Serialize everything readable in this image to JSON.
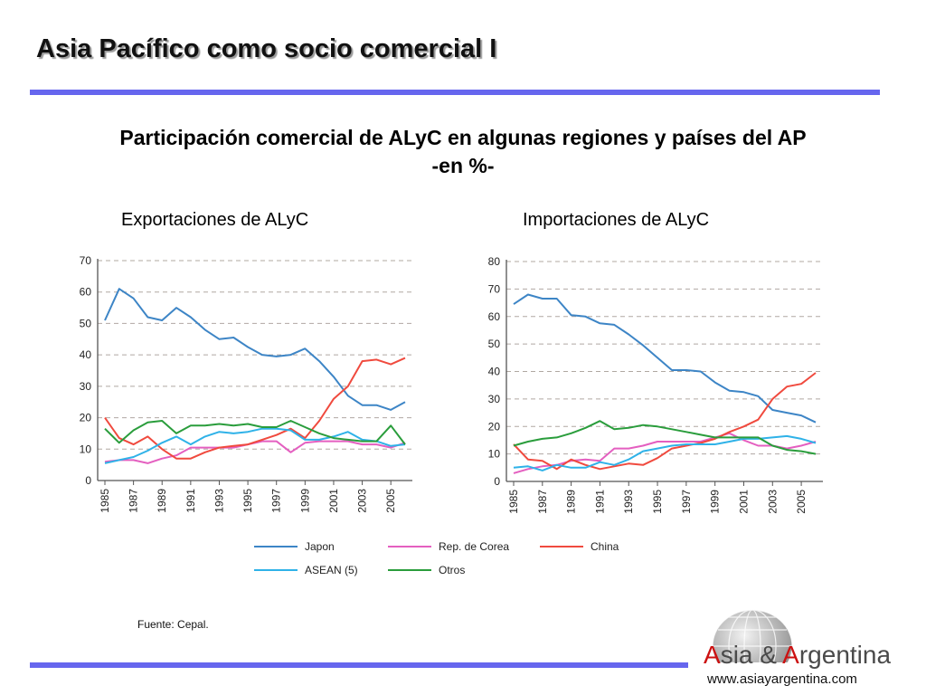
{
  "slide": {
    "title": "Asia Pacífico como socio comercial I",
    "subtitle_line1": "Participación comercial de ALyC en algunas regiones y países del AP",
    "subtitle_line2": "-en %-",
    "source": "Fuente: Cepal.",
    "logo": {
      "cap1": "A",
      "word1": "sia & ",
      "cap2": "A",
      "word2": "rgentina",
      "url": "www.asiayargentina.com"
    }
  },
  "colors": {
    "accent_bar": "#6666ee",
    "Japon": "#3d85c6",
    "Rep. de Corea": "#e45fc0",
    "China": "#f04a3e",
    "ASEAN (5)": "#2fb2e8",
    "Otros": "#2a9d3c"
  },
  "legend": [
    "Japon",
    "Rep. de Corea",
    "China",
    "ASEAN (5)",
    "Otros"
  ],
  "chart_data": [
    {
      "type": "line",
      "title": "Exportaciones de ALyC",
      "xlabel": "",
      "ylabel": "",
      "ylim": [
        0,
        70
      ],
      "yticks": [
        0,
        10,
        20,
        30,
        40,
        50,
        60,
        70
      ],
      "grid": "horizontal-dashed",
      "x": [
        1985,
        1986,
        1987,
        1988,
        1989,
        1990,
        1991,
        1992,
        1993,
        1994,
        1995,
        1996,
        1997,
        1998,
        1999,
        2000,
        2001,
        2002,
        2003,
        2004,
        2005,
        2006
      ],
      "xtick_labels": [
        "1985",
        "1987",
        "1989",
        "1991",
        "1993",
        "1995",
        "1997",
        "1999",
        "2001",
        "2003",
        "2005"
      ],
      "series": [
        {
          "name": "Japon",
          "values": [
            51,
            61,
            58,
            52,
            51,
            55,
            52,
            48,
            45,
            45.5,
            42.5,
            40,
            39.5,
            40,
            42,
            38,
            33,
            27,
            24,
            24,
            22.5,
            25
          ]
        },
        {
          "name": "Rep. de Corea",
          "values": [
            6,
            6.5,
            6.5,
            5.5,
            7,
            8,
            10.5,
            10.5,
            10.5,
            10.5,
            11.5,
            12.5,
            12.5,
            9,
            12,
            12.5,
            12.5,
            12.5,
            11.5,
            11.5,
            10.5,
            12
          ]
        },
        {
          "name": "China",
          "values": [
            20,
            13.5,
            11.5,
            14,
            10,
            7,
            7,
            9,
            10.5,
            11,
            11.5,
            13,
            14.5,
            16.5,
            13.5,
            19,
            26,
            30,
            38,
            38.5,
            37,
            39
          ]
        },
        {
          "name": "ASEAN (5)",
          "values": [
            5.5,
            6.5,
            7.5,
            9.5,
            12,
            14,
            11.5,
            14,
            15.5,
            15,
            15.5,
            16.5,
            16.5,
            16,
            13,
            13,
            14,
            15.5,
            13,
            12.5,
            11,
            11.5
          ]
        },
        {
          "name": "Otros",
          "values": [
            16.5,
            12,
            16,
            18.5,
            19,
            15,
            17.5,
            17.5,
            18,
            17.5,
            18,
            17,
            17,
            19,
            17,
            15,
            13.5,
            13,
            12.5,
            12.5,
            17.5,
            11.5
          ]
        }
      ]
    },
    {
      "type": "line",
      "title": "Importaciones de ALyC",
      "xlabel": "",
      "ylabel": "",
      "ylim": [
        0,
        80
      ],
      "yticks": [
        0,
        10,
        20,
        30,
        40,
        50,
        60,
        70,
        80
      ],
      "grid": "horizontal-dashed",
      "x": [
        1985,
        1986,
        1987,
        1988,
        1989,
        1990,
        1991,
        1992,
        1993,
        1994,
        1995,
        1996,
        1997,
        1998,
        1999,
        2000,
        2001,
        2002,
        2003,
        2004,
        2005,
        2006
      ],
      "xtick_labels": [
        "1985",
        "1987",
        "1989",
        "1991",
        "1993",
        "1995",
        "1997",
        "1999",
        "2001",
        "2003",
        "2005"
      ],
      "series": [
        {
          "name": "Japon",
          "values": [
            64.5,
            68,
            66.5,
            66.5,
            60.5,
            60,
            57.5,
            57,
            53.5,
            49.5,
            45,
            40.5,
            40.5,
            40,
            36,
            33,
            32.5,
            31,
            26,
            25,
            24,
            21.5
          ]
        },
        {
          "name": "Rep. de Corea",
          "values": [
            3,
            4.5,
            5.5,
            6,
            7.5,
            8,
            7.5,
            12,
            12,
            13,
            14.5,
            14.5,
            14.5,
            14.5,
            16,
            17.5,
            15,
            13,
            13,
            12,
            13,
            14.5
          ]
        },
        {
          "name": "China",
          "values": [
            13.5,
            8,
            7.5,
            4.5,
            8,
            6,
            4.5,
            5.5,
            6.5,
            6,
            8.5,
            12,
            13,
            14,
            15.5,
            18,
            20,
            22.5,
            30,
            34.5,
            35.5,
            39.5
          ]
        },
        {
          "name": "ASEAN (5)",
          "values": [
            5,
            5.5,
            4,
            6,
            5,
            5,
            7,
            6,
            8,
            11,
            12,
            13,
            13.5,
            13.5,
            13.5,
            14.5,
            15.5,
            15.5,
            16,
            16.5,
            15.5,
            14
          ]
        },
        {
          "name": "Otros",
          "values": [
            13,
            14.5,
            15.5,
            16,
            17.5,
            19.5,
            22,
            19,
            19.5,
            20.5,
            20,
            19,
            18,
            17,
            16,
            16,
            16,
            16,
            13,
            11.5,
            11,
            10
          ]
        }
      ]
    }
  ]
}
